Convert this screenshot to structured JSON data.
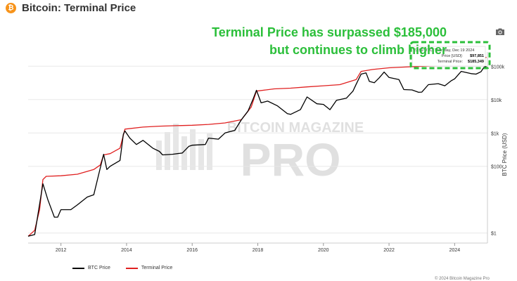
{
  "header": {
    "icon": "bitcoin-icon",
    "title": "Bitcoin: Terminal Price"
  },
  "toolbar": {
    "camera_icon": "camera-icon"
  },
  "annotation": {
    "line1": "Terminal Price has surpassed $185,000",
    "line2": "but continues to climb higher",
    "color": "#2bbf3a"
  },
  "tooltip": {
    "timestamp": "23:59 UTC, Thursday, Dec 19 2024",
    "price_label": "Price [USD]:",
    "price_value": "$97,851",
    "terminal_label": "Terminal Price:",
    "terminal_value": "$185,349"
  },
  "watermark": {
    "line1": "BITCOIN MAGAZINE",
    "line2": "PRO"
  },
  "copyright": "© 2024 Bitcoin Magazine Pro",
  "chart_data": {
    "type": "line",
    "ylabel": "BTC Price (USD)",
    "y_scale": "log",
    "ylim": [
      0.5,
      200000
    ],
    "xlim": [
      2011.0,
      2025.0
    ],
    "x_ticks": [
      "2012",
      "2014",
      "2016",
      "2018",
      "2020",
      "2022",
      "2024"
    ],
    "y_ticks": [
      "$1",
      "$100",
      "$1k",
      "$10k",
      "$100k"
    ],
    "legend_position": "bottom-left",
    "series": [
      {
        "name": "BTC Price",
        "color": "#000000",
        "points": [
          [
            2011.0,
            0.8
          ],
          [
            2011.2,
            0.9
          ],
          [
            2011.4,
            15
          ],
          [
            2011.45,
            30
          ],
          [
            2011.6,
            10
          ],
          [
            2011.8,
            3
          ],
          [
            2011.9,
            3
          ],
          [
            2012.0,
            5
          ],
          [
            2012.3,
            5
          ],
          [
            2012.5,
            7
          ],
          [
            2012.8,
            12
          ],
          [
            2013.0,
            14
          ],
          [
            2013.2,
            90
          ],
          [
            2013.3,
            230
          ],
          [
            2013.4,
            80
          ],
          [
            2013.5,
            100
          ],
          [
            2013.8,
            150
          ],
          [
            2013.9,
            900
          ],
          [
            2013.95,
            1150
          ],
          [
            2014.1,
            700
          ],
          [
            2014.3,
            450
          ],
          [
            2014.5,
            600
          ],
          [
            2014.8,
            350
          ],
          [
            2015.0,
            280
          ],
          [
            2015.1,
            220
          ],
          [
            2015.4,
            230
          ],
          [
            2015.7,
            250
          ],
          [
            2015.9,
            400
          ],
          [
            2016.0,
            430
          ],
          [
            2016.4,
            450
          ],
          [
            2016.5,
            700
          ],
          [
            2016.8,
            650
          ],
          [
            2017.0,
            1000
          ],
          [
            2017.3,
            1200
          ],
          [
            2017.5,
            2500
          ],
          [
            2017.7,
            4500
          ],
          [
            2017.85,
            10000
          ],
          [
            2017.96,
            19000
          ],
          [
            2018.1,
            8000
          ],
          [
            2018.3,
            9000
          ],
          [
            2018.6,
            6500
          ],
          [
            2018.9,
            3800
          ],
          [
            2019.0,
            3600
          ],
          [
            2019.3,
            5000
          ],
          [
            2019.5,
            12000
          ],
          [
            2019.8,
            7500
          ],
          [
            2020.0,
            7200
          ],
          [
            2020.2,
            5000
          ],
          [
            2020.4,
            9500
          ],
          [
            2020.7,
            11000
          ],
          [
            2020.9,
            18000
          ],
          [
            2021.0,
            29000
          ],
          [
            2021.15,
            58000
          ],
          [
            2021.3,
            63000
          ],
          [
            2021.4,
            35000
          ],
          [
            2021.55,
            32000
          ],
          [
            2021.7,
            45000
          ],
          [
            2021.85,
            67000
          ],
          [
            2022.0,
            46000
          ],
          [
            2022.3,
            40000
          ],
          [
            2022.45,
            20000
          ],
          [
            2022.7,
            19500
          ],
          [
            2022.9,
            16500
          ],
          [
            2023.0,
            16800
          ],
          [
            2023.2,
            28000
          ],
          [
            2023.5,
            30000
          ],
          [
            2023.7,
            26000
          ],
          [
            2023.9,
            37000
          ],
          [
            2024.0,
            42000
          ],
          [
            2024.2,
            70000
          ],
          [
            2024.5,
            60000
          ],
          [
            2024.65,
            58000
          ],
          [
            2024.8,
            68000
          ],
          [
            2024.9,
            95000
          ],
          [
            2024.97,
            97851
          ]
        ]
      },
      {
        "name": "Terminal Price",
        "color": "#e02020",
        "points": [
          [
            2011.0,
            0.8
          ],
          [
            2011.2,
            1.2
          ],
          [
            2011.35,
            5
          ],
          [
            2011.45,
            40
          ],
          [
            2011.55,
            50
          ],
          [
            2012.0,
            52
          ],
          [
            2012.5,
            58
          ],
          [
            2013.0,
            80
          ],
          [
            2013.2,
            110
          ],
          [
            2013.3,
            220
          ],
          [
            2013.5,
            240
          ],
          [
            2013.8,
            350
          ],
          [
            2013.95,
            1300
          ],
          [
            2014.5,
            1500
          ],
          [
            2015.0,
            1600
          ],
          [
            2015.5,
            1650
          ],
          [
            2016.0,
            1700
          ],
          [
            2016.5,
            1800
          ],
          [
            2017.0,
            2000
          ],
          [
            2017.5,
            2500
          ],
          [
            2017.8,
            6000
          ],
          [
            2017.96,
            18000
          ],
          [
            2018.5,
            21000
          ],
          [
            2019.0,
            22000
          ],
          [
            2019.5,
            24000
          ],
          [
            2020.0,
            26000
          ],
          [
            2020.5,
            28000
          ],
          [
            2021.0,
            40000
          ],
          [
            2021.15,
            70000
          ],
          [
            2021.5,
            80000
          ],
          [
            2022.0,
            90000
          ],
          [
            2022.5,
            95000
          ],
          [
            2023.0,
            100000
          ],
          [
            2023.5,
            105000
          ],
          [
            2024.0,
            120000
          ],
          [
            2024.3,
            150000
          ],
          [
            2024.7,
            170000
          ],
          [
            2024.97,
            185349
          ]
        ]
      }
    ]
  }
}
